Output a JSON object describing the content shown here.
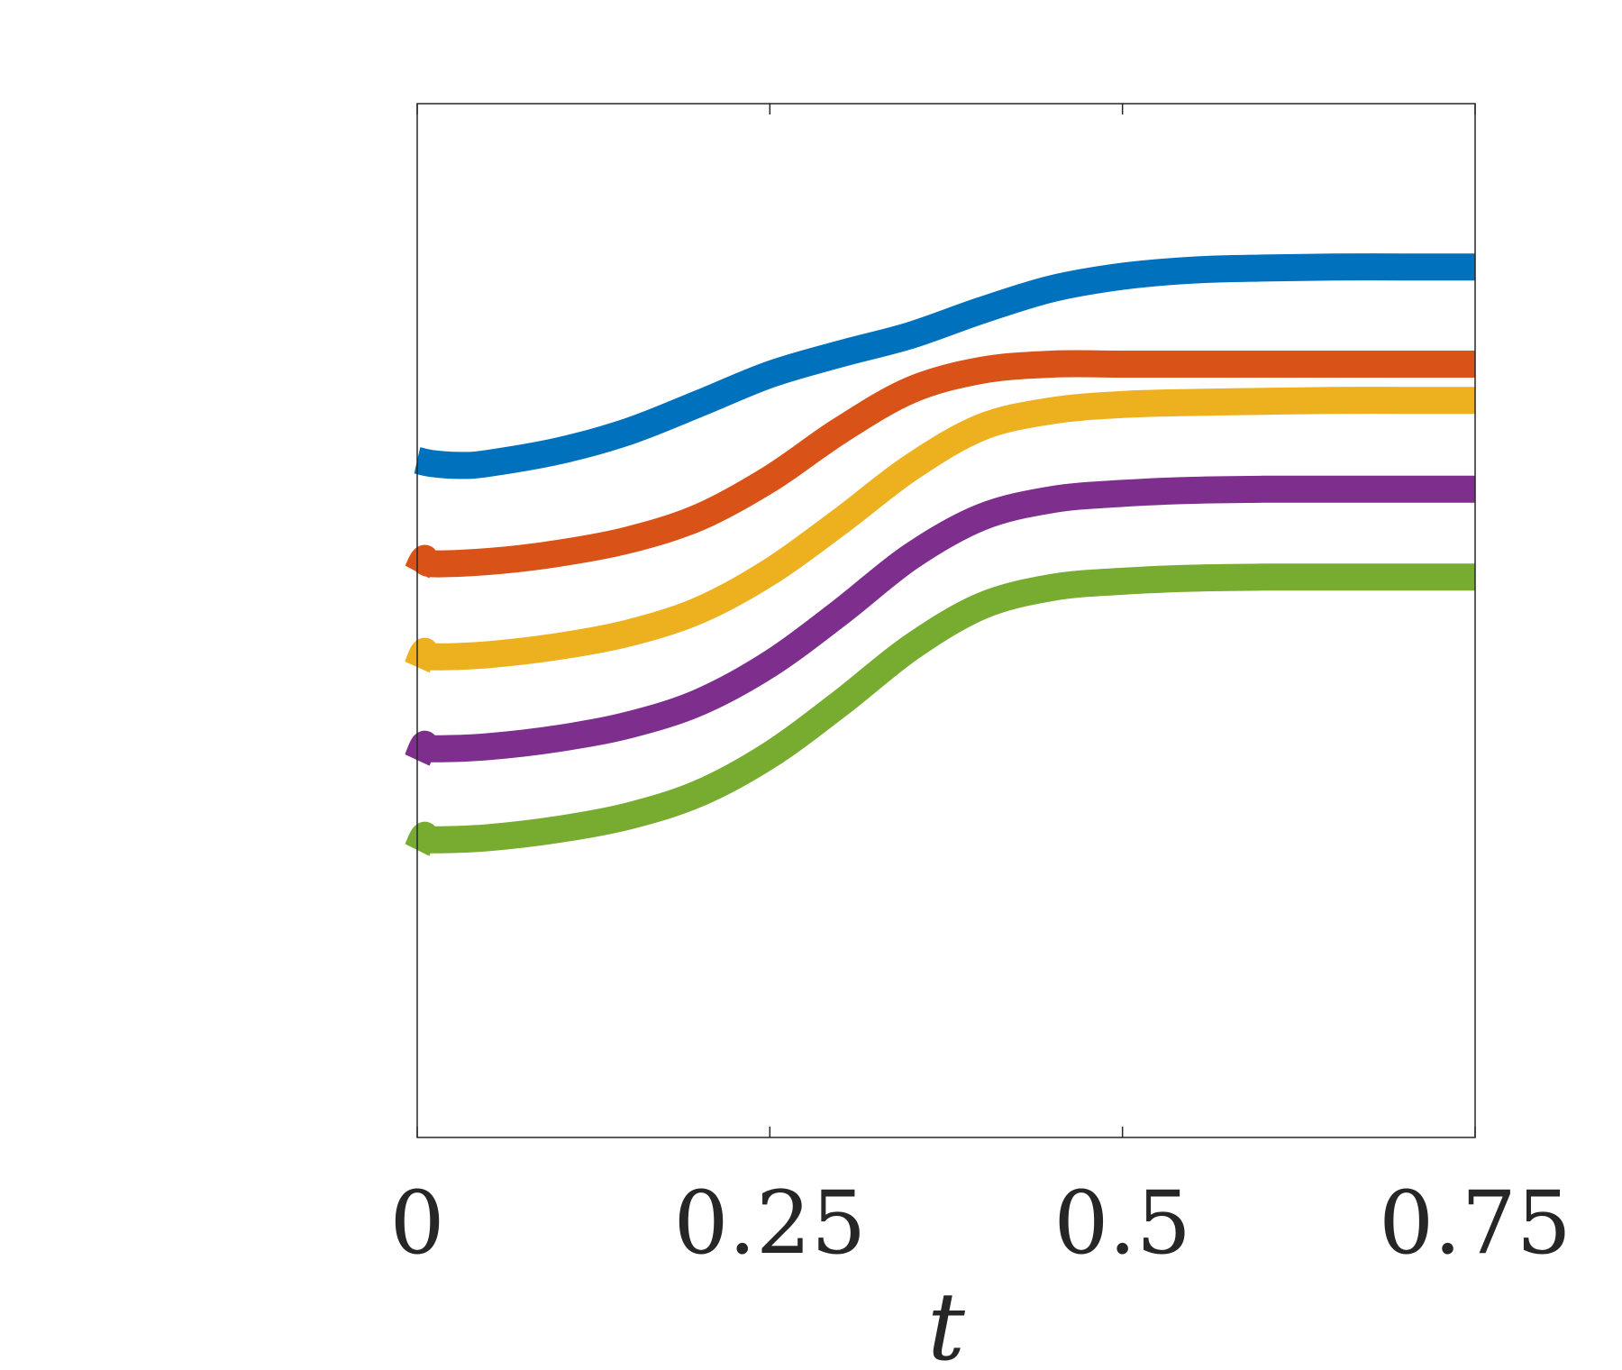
{
  "chart_data": {
    "type": "line",
    "title": "",
    "xlabel": "t",
    "ylabel": "",
    "xlim": [
      0,
      0.75
    ],
    "xticks": [
      0,
      0.25,
      0.5,
      0.75
    ],
    "xtick_labels": [
      "0",
      "0.25",
      "0.5",
      "0.75"
    ],
    "ylim": [
      0,
      1
    ],
    "yticks": [],
    "grid": false,
    "legend": "none",
    "series": [
      {
        "color": "#0072BD",
        "x": [
          0,
          0.01,
          0.03,
          0.05,
          0.1,
          0.15,
          0.2,
          0.25,
          0.3,
          0.35,
          0.4,
          0.45,
          0.5,
          0.55,
          0.6,
          0.65,
          0.7,
          0.75
        ],
        "y": [
          0.655,
          0.652,
          0.65,
          0.652,
          0.664,
          0.683,
          0.71,
          0.738,
          0.758,
          0.776,
          0.8,
          0.821,
          0.833,
          0.839,
          0.841,
          0.842,
          0.842,
          0.842
        ]
      },
      {
        "color": "#D95319",
        "x": [
          0,
          0.005,
          0.01,
          0.05,
          0.1,
          0.15,
          0.2,
          0.25,
          0.3,
          0.35,
          0.4,
          0.45,
          0.5,
          0.55,
          0.6,
          0.65,
          0.7,
          0.75
        ],
        "y": [
          0.547,
          0.56,
          0.555,
          0.557,
          0.565,
          0.578,
          0.6,
          0.637,
          0.684,
          0.723,
          0.742,
          0.748,
          0.748,
          0.748,
          0.748,
          0.748,
          0.748,
          0.748
        ]
      },
      {
        "color": "#EDB120",
        "x": [
          0,
          0.005,
          0.01,
          0.05,
          0.1,
          0.15,
          0.2,
          0.25,
          0.3,
          0.35,
          0.4,
          0.45,
          0.5,
          0.55,
          0.6,
          0.65,
          0.7,
          0.75
        ],
        "y": [
          0.455,
          0.47,
          0.465,
          0.467,
          0.475,
          0.488,
          0.51,
          0.547,
          0.596,
          0.648,
          0.687,
          0.703,
          0.709,
          0.711,
          0.712,
          0.713,
          0.713,
          0.713
        ]
      },
      {
        "color": "#7E2F8E",
        "x": [
          0,
          0.005,
          0.01,
          0.05,
          0.1,
          0.15,
          0.2,
          0.25,
          0.3,
          0.35,
          0.4,
          0.45,
          0.5,
          0.55,
          0.6,
          0.65,
          0.7,
          0.75
        ],
        "y": [
          0.365,
          0.38,
          0.376,
          0.378,
          0.386,
          0.399,
          0.421,
          0.458,
          0.508,
          0.562,
          0.6,
          0.617,
          0.623,
          0.626,
          0.627,
          0.627,
          0.627,
          0.627
        ]
      },
      {
        "color": "#77AC30",
        "x": [
          0,
          0.005,
          0.01,
          0.05,
          0.1,
          0.15,
          0.2,
          0.25,
          0.3,
          0.35,
          0.4,
          0.45,
          0.5,
          0.55,
          0.6,
          0.65,
          0.7,
          0.75
        ],
        "y": [
          0.278,
          0.292,
          0.288,
          0.29,
          0.298,
          0.311,
          0.333,
          0.37,
          0.42,
          0.474,
          0.514,
          0.532,
          0.538,
          0.541,
          0.542,
          0.542,
          0.542,
          0.542
        ]
      }
    ]
  }
}
